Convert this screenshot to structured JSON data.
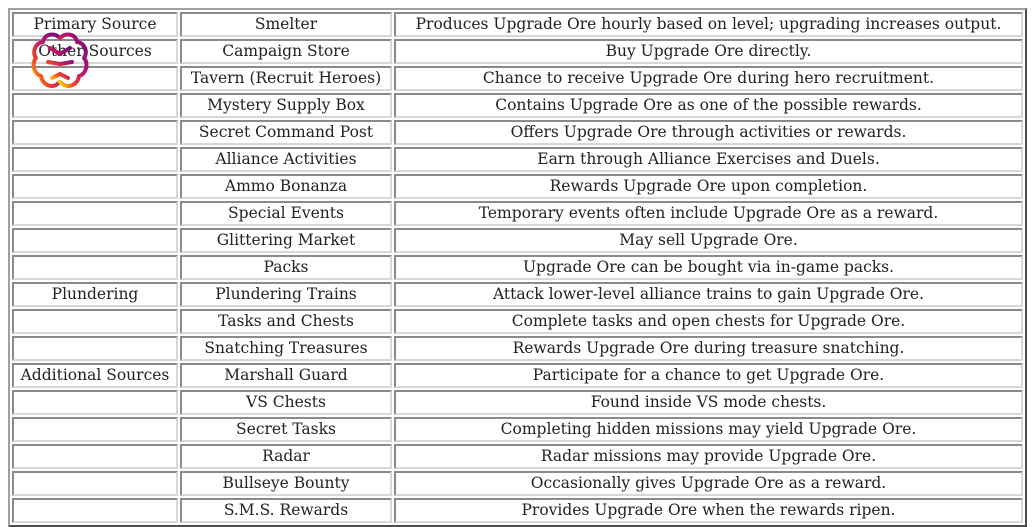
{
  "rows": [
    [
      "Primary Source",
      "Smelter",
      "Produces Upgrade Ore hourly based on level; upgrading increases output."
    ],
    [
      "Other Sources",
      "Campaign Store",
      "Buy Upgrade Ore directly."
    ],
    [
      "",
      "Tavern (Recruit Heroes)",
      "Chance to receive Upgrade Ore during hero recruitment."
    ],
    [
      "",
      "Mystery Supply Box",
      "Contains Upgrade Ore as one of the possible rewards."
    ],
    [
      "",
      "Secret Command Post",
      "Offers Upgrade Ore through activities or rewards."
    ],
    [
      "",
      "Alliance Activities",
      "Earn through Alliance Exercises and Duels."
    ],
    [
      "",
      "Ammo Bonanza",
      "Rewards Upgrade Ore upon completion."
    ],
    [
      "",
      "Special Events",
      "Temporary events often include Upgrade Ore as a reward."
    ],
    [
      "",
      "Glittering Market",
      "May sell Upgrade Ore."
    ],
    [
      "",
      "Packs",
      "Upgrade Ore can be bought via in-game packs."
    ],
    [
      "Plundering",
      "Plundering Trains",
      "Attack lower-level alliance trains to gain Upgrade Ore."
    ],
    [
      "",
      "Tasks and Chests",
      "Complete tasks and open chests for Upgrade Ore."
    ],
    [
      "",
      "Snatching Treasures",
      "Rewards Upgrade Ore during treasure snatching."
    ],
    [
      "Additional Sources",
      "Marshall Guard",
      "Participate for a chance to get Upgrade Ore."
    ],
    [
      "",
      "VS Chests",
      "Found inside VS mode chests."
    ],
    [
      "",
      "Secret Tasks",
      "Completing hidden missions may yield Upgrade Ore."
    ],
    [
      "",
      "Radar",
      "Radar missions may provide Upgrade Ore."
    ],
    [
      "",
      "Bullseye Bounty",
      "Occasionally gives Upgrade Ore as a reward."
    ],
    [
      "",
      "S.M.S. Rewards",
      "Provides Upgrade Ore when the rewards ripen."
    ]
  ],
  "logo": {
    "icon": "brain-icon",
    "colors": [
      "#6a0a7a",
      "#c0186a",
      "#f04a20",
      "#ffe000"
    ]
  }
}
